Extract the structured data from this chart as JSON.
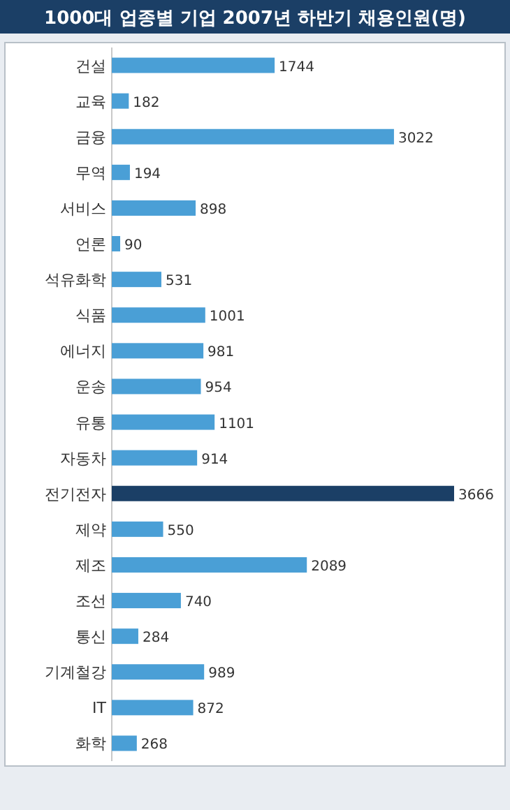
{
  "chart_data": {
    "type": "bar",
    "orientation": "horizontal",
    "title": "1000대 업종별 기업 2007년 하반기 채용인원(명)",
    "categories": [
      "건설",
      "교육",
      "금융",
      "무역",
      "서비스",
      "언론",
      "석유화학",
      "식품",
      "에너지",
      "운송",
      "유통",
      "자동차",
      "전기전자",
      "제약",
      "제조",
      "조선",
      "통신",
      "기계철강",
      "IT",
      "화학"
    ],
    "values": [
      1744,
      182,
      3022,
      194,
      898,
      90,
      531,
      1001,
      981,
      954,
      1101,
      914,
      3666,
      550,
      2089,
      740,
      284,
      989,
      872,
      268
    ],
    "colors": [
      "#4a9fd6",
      "#4a9fd6",
      "#4a9fd6",
      "#4a9fd6",
      "#4a9fd6",
      "#4a9fd6",
      "#4a9fd6",
      "#4a9fd6",
      "#4a9fd6",
      "#4a9fd6",
      "#4a9fd6",
      "#4a9fd6",
      "#1b3f66",
      "#4a9fd6",
      "#4a9fd6",
      "#4a9fd6",
      "#4a9fd6",
      "#4a9fd6",
      "#4a9fd6",
      "#4a9fd6"
    ],
    "data_labels": true
  }
}
